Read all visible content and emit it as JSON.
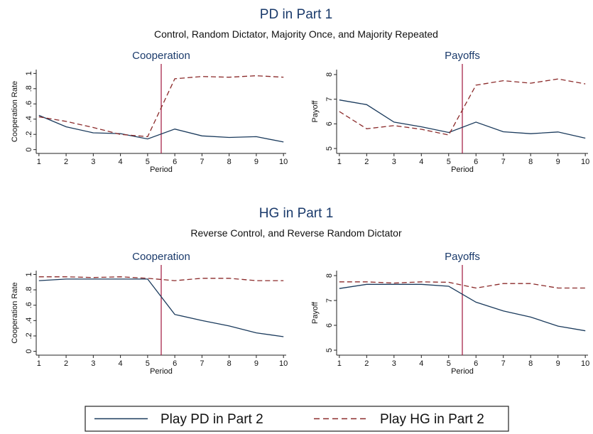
{
  "groups": [
    {
      "title": "PD in Part 1",
      "subtitle": "Control, Random Dictator, Majority Once, and Majority Repeated"
    },
    {
      "title": "HG in Part 1",
      "subtitle": "Reverse Control, and Reverse Random Dictator"
    }
  ],
  "legend": {
    "items": [
      {
        "label": "Play PD in Part 2",
        "color": "#1a3a5c",
        "dash": "solid"
      },
      {
        "label": "Play HG in Part 2",
        "color": "#8b2a2a",
        "dash": "dashed"
      }
    ]
  },
  "colors": {
    "pd": "#1a3a5c",
    "hg": "#8b2a2a",
    "divider": "#a0143c",
    "title": "#1a3a6b"
  },
  "chart_data": [
    {
      "type": "line",
      "title": "Cooperation",
      "xlabel": "Period",
      "ylabel": "Cooperation Rate",
      "x": [
        1,
        2,
        3,
        4,
        5,
        6,
        7,
        8,
        9,
        10
      ],
      "xticks": [
        "1",
        "2",
        "3",
        "4",
        "5",
        "6",
        "7",
        "8",
        "9",
        "10"
      ],
      "yticks": [
        0,
        0.2,
        0.4,
        0.6,
        0.8,
        1
      ],
      "ytick_labels": [
        "0",
        ".2",
        ".4",
        ".6",
        ".8",
        "1"
      ],
      "ylim": [
        -0.05,
        1.05
      ],
      "xlim": [
        0.9,
        10.1
      ],
      "vline": 5.5,
      "series": [
        {
          "name": "Play PD in Part 2",
          "values": [
            0.45,
            0.3,
            0.22,
            0.21,
            0.14,
            0.27,
            0.18,
            0.16,
            0.17,
            0.1
          ]
        },
        {
          "name": "Play HG in Part 2",
          "values": [
            0.43,
            0.37,
            0.29,
            0.2,
            0.17,
            0.93,
            0.96,
            0.95,
            0.97,
            0.95
          ]
        }
      ]
    },
    {
      "type": "line",
      "title": "Payoffs",
      "xlabel": "Period",
      "ylabel": "Payoff",
      "x": [
        1,
        2,
        3,
        4,
        5,
        6,
        7,
        8,
        9,
        10
      ],
      "xticks": [
        "1",
        "2",
        "3",
        "4",
        "5",
        "6",
        "7",
        "8",
        "9",
        "10"
      ],
      "yticks": [
        5,
        6,
        7,
        8
      ],
      "ytick_labels": [
        "5",
        "6",
        "7",
        "8"
      ],
      "ylim": [
        4.8,
        8.2
      ],
      "xlim": [
        0.9,
        10.1
      ],
      "vline": 5.5,
      "series": [
        {
          "name": "Play PD in Part 2",
          "values": [
            6.97,
            6.78,
            6.07,
            5.88,
            5.65,
            6.07,
            5.68,
            5.6,
            5.67,
            5.42
          ]
        },
        {
          "name": "Play HG in Part 2",
          "values": [
            6.5,
            5.8,
            5.93,
            5.78,
            5.55,
            7.57,
            7.75,
            7.65,
            7.82,
            7.62
          ]
        }
      ]
    },
    {
      "type": "line",
      "title": "Cooperation",
      "xlabel": "Period",
      "ylabel": "Cooperation Rate",
      "x": [
        1,
        2,
        3,
        4,
        5,
        6,
        7,
        8,
        9,
        10
      ],
      "xticks": [
        "1",
        "2",
        "3",
        "4",
        "5",
        "6",
        "7",
        "8",
        "9",
        "10"
      ],
      "yticks": [
        0,
        0.2,
        0.4,
        0.6,
        0.8,
        1
      ],
      "ytick_labels": [
        "0",
        ".2",
        ".4",
        ".6",
        ".8",
        "1"
      ],
      "ylim": [
        -0.05,
        1.05
      ],
      "xlim": [
        0.9,
        10.1
      ],
      "vline": 5.5,
      "series": [
        {
          "name": "Play PD in Part 2",
          "values": [
            0.92,
            0.94,
            0.94,
            0.94,
            0.94,
            0.48,
            0.4,
            0.33,
            0.24,
            0.19
          ]
        },
        {
          "name": "Play HG in Part 2",
          "values": [
            0.97,
            0.97,
            0.96,
            0.97,
            0.95,
            0.92,
            0.95,
            0.95,
            0.92,
            0.92
          ]
        }
      ]
    },
    {
      "type": "line",
      "title": "Payoffs",
      "xlabel": "Period",
      "ylabel": "Payoff",
      "x": [
        1,
        2,
        3,
        4,
        5,
        6,
        7,
        8,
        9,
        10
      ],
      "xticks": [
        "1",
        "2",
        "3",
        "4",
        "5",
        "6",
        "7",
        "8",
        "9",
        "10"
      ],
      "yticks": [
        5,
        6,
        7,
        8
      ],
      "ytick_labels": [
        "5",
        "6",
        "7",
        "8"
      ],
      "ylim": [
        4.8,
        8.2
      ],
      "xlim": [
        0.9,
        10.1
      ],
      "vline": 5.5,
      "series": [
        {
          "name": "Play PD in Part 2",
          "values": [
            7.48,
            7.65,
            7.65,
            7.65,
            7.57,
            6.93,
            6.58,
            6.33,
            5.97,
            5.78
          ]
        },
        {
          "name": "Play HG in Part 2",
          "values": [
            7.75,
            7.75,
            7.7,
            7.75,
            7.73,
            7.5,
            7.68,
            7.68,
            7.5,
            7.5
          ]
        }
      ]
    }
  ]
}
